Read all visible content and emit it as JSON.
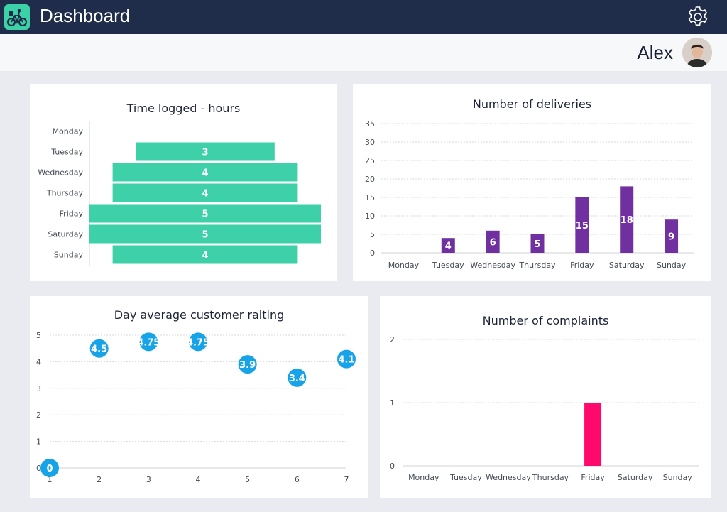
{
  "header": {
    "title": "Dashboard",
    "user_name": "Alex",
    "colors": {
      "bar": "#1f2d4b",
      "accent": "#3dd1a8"
    },
    "icons": [
      "bike-delivery-icon",
      "gear-icon"
    ]
  },
  "chart_data": [
    {
      "id": "hours",
      "type": "bar",
      "orientation": "horizontal",
      "title": "Time logged - hours",
      "categories": [
        "Monday",
        "Tuesday",
        "Wednesday",
        "Thursday",
        "Friday",
        "Saturday",
        "Sunday"
      ],
      "values": [
        0,
        3,
        4,
        4,
        5,
        5,
        4
      ],
      "data_labels": [
        "",
        "3",
        "4",
        "4",
        "5",
        "5",
        "4"
      ],
      "color": "#3ed1a9",
      "xlim": [
        0,
        5
      ]
    },
    {
      "id": "deliveries",
      "type": "bar",
      "title": "Number of deliveries",
      "categories": [
        "Monday",
        "Tuesday",
        "Wednesday",
        "Thursday",
        "Friday",
        "Saturday",
        "Sunday"
      ],
      "values": [
        0,
        4,
        6,
        5,
        15,
        18,
        9
      ],
      "data_labels": [
        "",
        "4",
        "6",
        "5",
        "15",
        "18",
        "9"
      ],
      "color": "#7030a0",
      "ylim": [
        0,
        35
      ],
      "yticks": [
        "0",
        "5",
        "10",
        "15",
        "20",
        "25",
        "30",
        "35"
      ],
      "grid": true
    },
    {
      "id": "rating",
      "type": "scatter",
      "title": "Day average customer raiting",
      "x": [
        1,
        2,
        3,
        4,
        5,
        6,
        7
      ],
      "y": [
        0,
        4.5,
        4.75,
        4.75,
        3.9,
        3.4,
        4.1
      ],
      "data_labels": [
        "0",
        "4.5",
        "4.75",
        "4.75",
        "3.9",
        "3.4",
        "4.1"
      ],
      "color": "#17a3e8",
      "xlim": [
        1,
        7
      ],
      "ylim": [
        0,
        5
      ],
      "xticks": [
        "1",
        "2",
        "3",
        "4",
        "5",
        "6",
        "7"
      ],
      "yticks": [
        "0",
        "1",
        "2",
        "3",
        "4",
        "5"
      ],
      "grid": true
    },
    {
      "id": "complaints",
      "type": "bar",
      "title": "Number of complaints",
      "categories": [
        "Monday",
        "Tuesday",
        "Wednesday",
        "Thursday",
        "Friday",
        "Saturday",
        "Sunday"
      ],
      "values": [
        0,
        0,
        0,
        0,
        1,
        0,
        0
      ],
      "color": "#ff0a6c",
      "ylim": [
        0,
        2
      ],
      "yticks": [
        "0",
        "1",
        "2"
      ],
      "grid": true
    }
  ]
}
